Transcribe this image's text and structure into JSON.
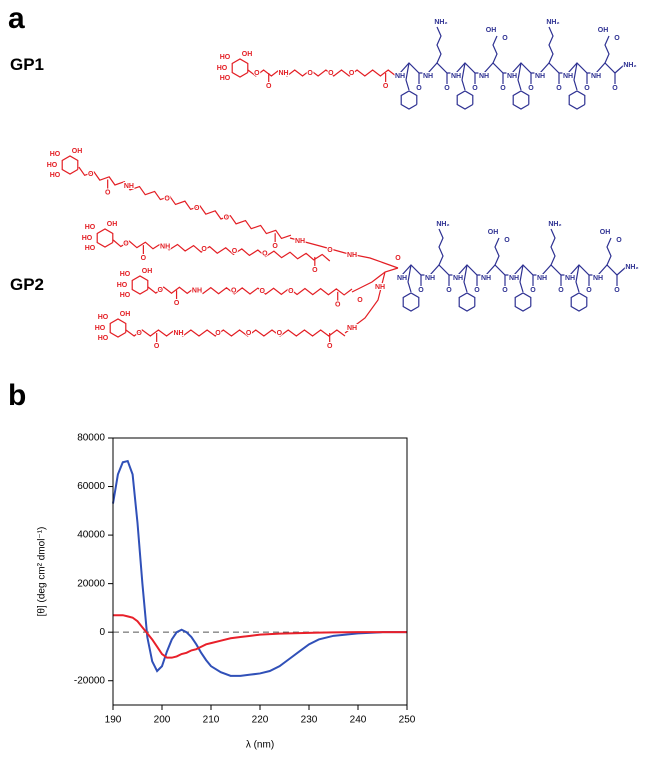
{
  "panels": {
    "a": "a",
    "b": "b"
  },
  "structures": {
    "gp1": {
      "label": "GP1",
      "sugars": [
        {
          "labels": [
            "HO",
            "OH",
            "HO",
            "HO"
          ],
          "linker": [
            "O",
            "O",
            "NH",
            "O",
            "O",
            "O",
            "O"
          ]
        }
      ],
      "peptide": [
        "NH",
        "O",
        "NH",
        "O",
        "NH₂",
        "NH",
        "O",
        "NH",
        "O",
        "OH",
        "O",
        "NH",
        "O",
        "NH",
        "O",
        "NH₂",
        "NH",
        "O",
        "NH",
        "O",
        "OH",
        "O",
        "NH₂"
      ]
    },
    "gp2": {
      "label": "GP2",
      "sugars": [
        {
          "labels": [
            "HO",
            "OH",
            "HO",
            "HO"
          ],
          "linker": [
            "O",
            "O",
            "NH",
            "O",
            "O",
            "O",
            "O"
          ]
        },
        {
          "labels": [
            "HO",
            "OH",
            "HO",
            "HO"
          ],
          "linker": [
            "O",
            "O",
            "NH",
            "O",
            "O",
            "O",
            "O"
          ]
        },
        {
          "labels": [
            "HO",
            "OH",
            "HO",
            "HO"
          ],
          "linker": [
            "O",
            "O",
            "NH",
            "O",
            "O",
            "O",
            "O"
          ]
        },
        {
          "labels": [
            "HO",
            "OH",
            "HO",
            "HO"
          ],
          "linker": [
            "O",
            "O",
            "NH",
            "O",
            "O",
            "O",
            "O"
          ]
        }
      ],
      "branch": [
        "NH",
        "O",
        "NH",
        "O",
        "NH",
        "O",
        "NH"
      ],
      "peptide": [
        "NH",
        "O",
        "NH",
        "O",
        "NH₂",
        "NH",
        "O",
        "NH",
        "O",
        "OH",
        "O",
        "NH",
        "O",
        "NH",
        "O",
        "NH₂",
        "NH",
        "O",
        "NH",
        "O",
        "OH",
        "O",
        "NH₂"
      ]
    }
  },
  "chart_data": {
    "type": "line",
    "x_label": "λ (nm)",
    "y_label": "[θ] (deg cm² dmol⁻¹)",
    "x": [
      190,
      191,
      192,
      193,
      194,
      195,
      196,
      197,
      198,
      199,
      200,
      201,
      202,
      203,
      204,
      205,
      206,
      207,
      208,
      209,
      210,
      212,
      214,
      216,
      218,
      220,
      222,
      224,
      226,
      228,
      230,
      232,
      235,
      240,
      245,
      250
    ],
    "series": [
      {
        "color": "#3050b8",
        "values": [
          53000,
          65000,
          70000,
          70500,
          65000,
          45000,
          20000,
          -2000,
          -12000,
          -16000,
          -14000,
          -8000,
          -3000,
          0,
          1000,
          0,
          -2000,
          -5000,
          -8500,
          -11500,
          -14000,
          -16500,
          -18000,
          -18000,
          -17500,
          -17000,
          -16000,
          -14000,
          -11000,
          -8000,
          -5000,
          -3000,
          -1500,
          -500,
          0,
          0
        ]
      },
      {
        "color": "#e8202a",
        "values": [
          7000,
          7000,
          7000,
          6500,
          6000,
          4500,
          2000,
          -500,
          -3000,
          -6000,
          -9000,
          -10500,
          -10500,
          -10000,
          -9000,
          -8500,
          -7500,
          -7000,
          -6000,
          -5000,
          -4500,
          -3500,
          -2500,
          -2000,
          -1500,
          -1000,
          -800,
          -600,
          -500,
          -400,
          -300,
          -200,
          -100,
          0,
          0,
          0
        ]
      }
    ],
    "xlim": [
      190,
      250
    ],
    "xticks": [
      190,
      200,
      210,
      220,
      230,
      240,
      250
    ],
    "ylim": [
      -30000,
      80000
    ],
    "yticks": [
      -20000,
      0,
      20000,
      40000,
      60000,
      80000
    ],
    "zero_line": true
  }
}
